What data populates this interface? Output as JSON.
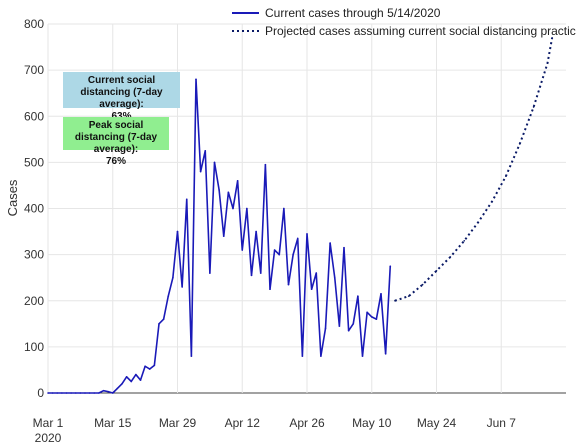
{
  "chart_data": {
    "type": "line",
    "title": "",
    "xlabel": "",
    "ylabel": "Cases",
    "ylim": [
      0,
      800
    ],
    "y_ticks": [
      0,
      100,
      200,
      300,
      400,
      500,
      600,
      700,
      800
    ],
    "x_start": "2020-03-01",
    "x_end": "2020-06-21",
    "x_ticks": [
      {
        "date": "2020-03-01",
        "label": "Mar 1",
        "sub": "2020"
      },
      {
        "date": "2020-03-15",
        "label": "Mar 15",
        "sub": ""
      },
      {
        "date": "2020-03-29",
        "label": "Mar 29",
        "sub": ""
      },
      {
        "date": "2020-04-12",
        "label": "Apr 12",
        "sub": ""
      },
      {
        "date": "2020-04-26",
        "label": "Apr 26",
        "sub": ""
      },
      {
        "date": "2020-05-10",
        "label": "May 10",
        "sub": ""
      },
      {
        "date": "2020-05-24",
        "label": "May 24",
        "sub": ""
      },
      {
        "date": "2020-06-07",
        "label": "Jun 7",
        "sub": ""
      }
    ],
    "grid": true,
    "legend_position": "top-right",
    "series": [
      {
        "name": "Current cases through 5/14/2020",
        "style": "solid",
        "color": "#1a1ab8",
        "x": [
          "2020-03-01",
          "2020-03-02",
          "2020-03-03",
          "2020-03-04",
          "2020-03-05",
          "2020-03-06",
          "2020-03-07",
          "2020-03-08",
          "2020-03-09",
          "2020-03-10",
          "2020-03-11",
          "2020-03-12",
          "2020-03-13",
          "2020-03-14",
          "2020-03-15",
          "2020-03-16",
          "2020-03-17",
          "2020-03-18",
          "2020-03-19",
          "2020-03-20",
          "2020-03-21",
          "2020-03-22",
          "2020-03-23",
          "2020-03-24",
          "2020-03-25",
          "2020-03-26",
          "2020-03-27",
          "2020-03-28",
          "2020-03-29",
          "2020-03-30",
          "2020-03-31",
          "2020-04-01",
          "2020-04-02",
          "2020-04-03",
          "2020-04-04",
          "2020-04-05",
          "2020-04-06",
          "2020-04-07",
          "2020-04-08",
          "2020-04-09",
          "2020-04-10",
          "2020-04-11",
          "2020-04-12",
          "2020-04-13",
          "2020-04-14",
          "2020-04-15",
          "2020-04-16",
          "2020-04-17",
          "2020-04-18",
          "2020-04-19",
          "2020-04-20",
          "2020-04-21",
          "2020-04-22",
          "2020-04-23",
          "2020-04-24",
          "2020-04-25",
          "2020-04-26",
          "2020-04-27",
          "2020-04-28",
          "2020-04-29",
          "2020-04-30",
          "2020-05-01",
          "2020-05-02",
          "2020-05-03",
          "2020-05-04",
          "2020-05-05",
          "2020-05-06",
          "2020-05-07",
          "2020-05-08",
          "2020-05-09",
          "2020-05-10",
          "2020-05-11",
          "2020-05-12",
          "2020-05-13",
          "2020-05-14"
        ],
        "values": [
          0,
          0,
          0,
          0,
          0,
          0,
          0,
          0,
          0,
          0,
          0,
          0,
          5,
          3,
          0,
          10,
          20,
          35,
          25,
          40,
          28,
          58,
          52,
          60,
          150,
          160,
          210,
          250,
          350,
          230,
          420,
          80,
          680,
          480,
          525,
          260,
          500,
          440,
          340,
          435,
          400,
          460,
          310,
          400,
          255,
          350,
          260,
          495,
          225,
          310,
          300,
          400,
          235,
          300,
          335,
          80,
          345,
          225,
          260,
          80,
          140,
          325,
          250,
          145,
          315,
          135,
          150,
          210,
          80,
          175,
          165,
          160,
          215,
          85,
          275
        ]
      },
      {
        "name": "Projected cases assuming current social distancing practices*",
        "style": "dotted",
        "color": "#0a1a66",
        "x": [
          "2020-05-15",
          "2020-05-18",
          "2020-05-21",
          "2020-05-24",
          "2020-05-27",
          "2020-05-30",
          "2020-06-02",
          "2020-06-05",
          "2020-06-08",
          "2020-06-11",
          "2020-06-14",
          "2020-06-17",
          "2020-06-18"
        ],
        "values": [
          200,
          210,
          235,
          265,
          295,
          330,
          370,
          415,
          470,
          540,
          620,
          715,
          770
        ]
      }
    ],
    "annotations": [
      {
        "title": "Current social distancing (7-day average):",
        "value": "63%",
        "color": "#add8e6"
      },
      {
        "title": "Peak social distancing (7-day average):",
        "value": "76%",
        "color": "#90ee90"
      }
    ]
  }
}
